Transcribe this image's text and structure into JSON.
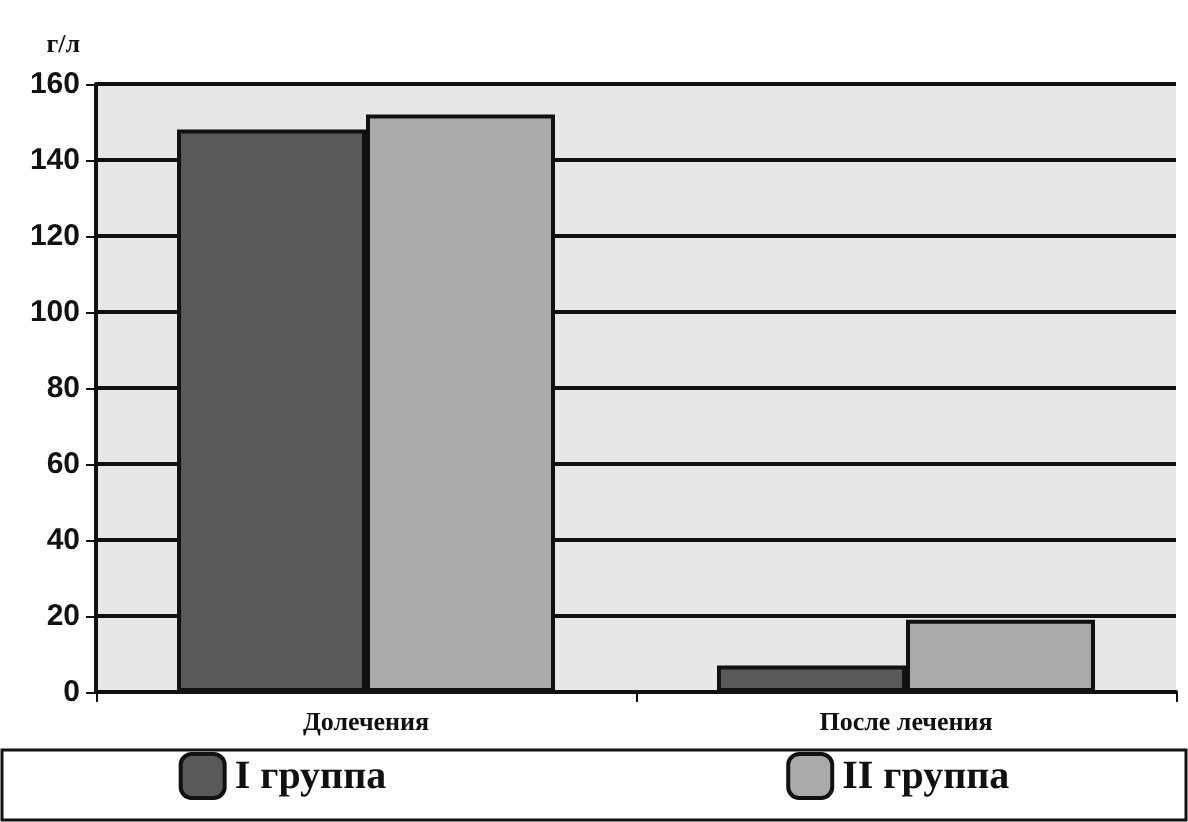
{
  "chart_data": {
    "type": "bar",
    "ylabel": "г/л",
    "categories": [
      "Долечения",
      "После лечения"
    ],
    "series": [
      {
        "name": "I группа",
        "color": "#58595b",
        "values": [
          148,
          7
        ]
      },
      {
        "name": "II группа",
        "color": "#a9aaac",
        "values": [
          152,
          19
        ]
      }
    ],
    "ylim": [
      0,
      160
    ],
    "yticks": [
      0,
      20,
      40,
      60,
      80,
      100,
      120,
      140,
      160
    ],
    "grid": "y",
    "legend": "bottom"
  }
}
